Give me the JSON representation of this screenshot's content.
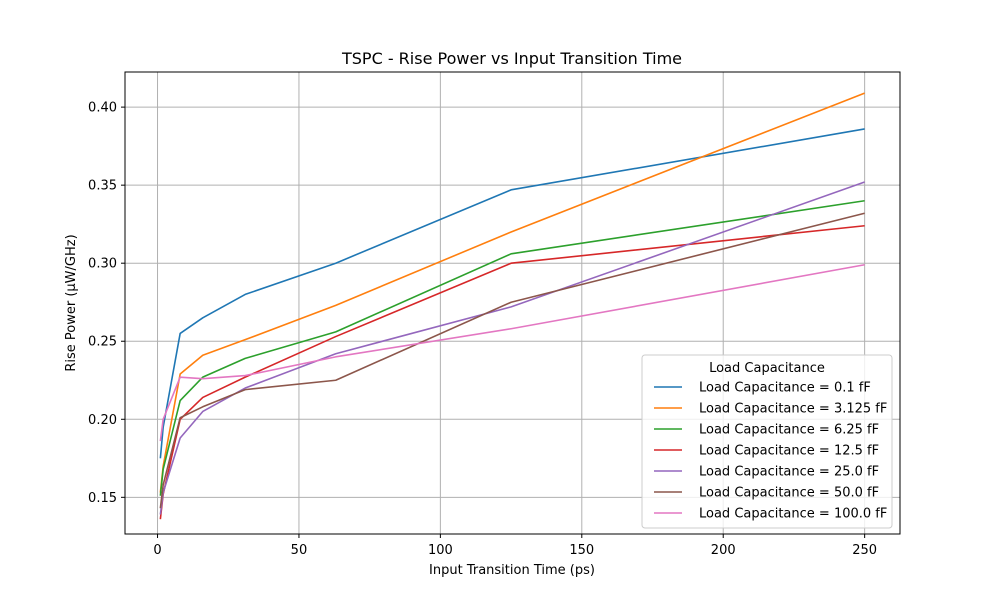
{
  "chart_data": {
    "type": "line",
    "title": "TSPC - Rise Power vs Input Transition Time",
    "xlabel": "Input Transition Time (ps)",
    "ylabel": "Rise Power (µW/GHz)",
    "xlim": [
      -11.5,
      262.5
    ],
    "ylim": [
      0.1265,
      0.4225
    ],
    "xticks": [
      0,
      50,
      100,
      150,
      200,
      250
    ],
    "xtick_labels": [
      "0",
      "50",
      "100",
      "150",
      "200",
      "250"
    ],
    "yticks": [
      0.15,
      0.2,
      0.25,
      0.3,
      0.35,
      0.4
    ],
    "ytick_labels": [
      "0.15",
      "0.20",
      "0.25",
      "0.30",
      "0.35",
      "0.40"
    ],
    "grid": true,
    "legend_title": "Load Capacitance",
    "legend_position": "lower-right",
    "x": [
      1,
      2,
      8,
      16,
      31,
      63,
      125,
      250
    ],
    "series": [
      {
        "name": "Load Capacitance = 0.1 fF",
        "color": "#1f77b4",
        "values": [
          0.175,
          0.195,
          0.255,
          0.265,
          0.28,
          0.3,
          0.347,
          0.386
        ]
      },
      {
        "name": "Load Capacitance = 3.125 fF",
        "color": "#ff7f0e",
        "values": [
          0.153,
          0.17,
          0.229,
          0.241,
          0.251,
          0.273,
          0.32,
          0.409
        ]
      },
      {
        "name": "Load Capacitance = 6.25 fF",
        "color": "#2ca02c",
        "values": [
          0.151,
          0.168,
          0.212,
          0.227,
          0.239,
          0.256,
          0.306,
          0.34
        ]
      },
      {
        "name": "Load Capacitance = 12.5 fF",
        "color": "#d62728",
        "values": [
          0.136,
          0.152,
          0.2,
          0.214,
          0.227,
          0.253,
          0.3,
          0.324
        ]
      },
      {
        "name": "Load Capacitance = 25.0 fF",
        "color": "#9467bd",
        "values": [
          0.139,
          0.153,
          0.188,
          0.205,
          0.22,
          0.242,
          0.272,
          0.352
        ]
      },
      {
        "name": "Load Capacitance = 50.0 fF",
        "color": "#8c564b",
        "values": [
          0.143,
          0.158,
          0.201,
          0.208,
          0.219,
          0.225,
          0.275,
          0.332
        ]
      },
      {
        "name": "Load Capacitance = 100.0 fF",
        "color": "#e377c2",
        "values": [
          0.186,
          0.2,
          0.227,
          0.226,
          0.228,
          0.24,
          0.258,
          0.299
        ]
      }
    ]
  }
}
